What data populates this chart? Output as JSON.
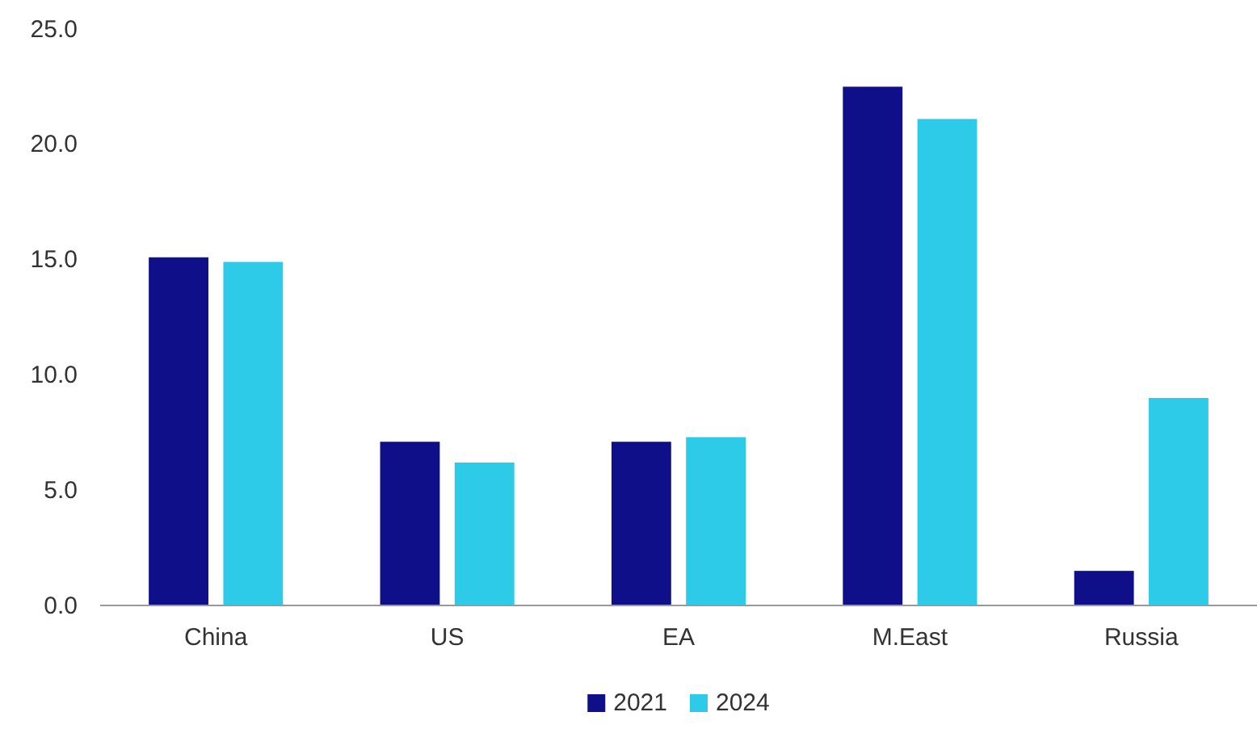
{
  "chart_data": {
    "type": "bar",
    "categories": [
      "China",
      "US",
      "EA",
      "M.East",
      "Russia"
    ],
    "series": [
      {
        "name": "2021",
        "color": "#0f0f8a",
        "values": [
          15.1,
          7.1,
          7.1,
          22.5,
          1.5
        ]
      },
      {
        "name": "2024",
        "color": "#2ecbe9",
        "values": [
          14.9,
          6.2,
          7.3,
          21.1,
          9.0
        ]
      }
    ],
    "ylim": [
      0,
      25
    ],
    "yticks": [
      {
        "value": 0,
        "label": "0.0"
      },
      {
        "value": 5,
        "label": "5.0"
      },
      {
        "value": 10,
        "label": "10.0"
      },
      {
        "value": 15,
        "label": "15.0"
      },
      {
        "value": 20,
        "label": "20.0"
      },
      {
        "value": 25,
        "label": "25.0"
      }
    ],
    "grid": false,
    "legend": "bottom"
  }
}
